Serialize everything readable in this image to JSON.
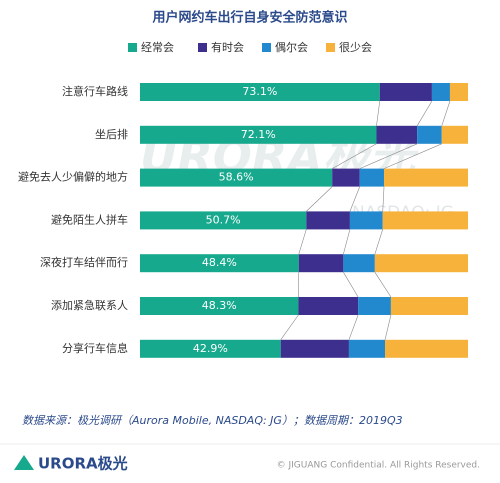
{
  "chart_data": {
    "type": "stacked-bar-horizontal",
    "title": "用户网约车出行自身安全防范意识",
    "categories": [
      "注意行车路线",
      "坐后排",
      "避免去人少偏僻的地方",
      "避免陌生人拼车",
      "深夜打车结伴而行",
      "添加紧急联系人",
      "分享行车信息"
    ],
    "series": [
      {
        "name": "经常会",
        "color": "#17a98d",
        "values": [
          73.1,
          72.1,
          58.6,
          50.7,
          48.4,
          48.3,
          42.9
        ],
        "value_labels": [
          "73.1%",
          "72.1%",
          "58.6%",
          "50.7%",
          "48.4%",
          "48.3%",
          "42.9%"
        ]
      },
      {
        "name": "有时会",
        "color": "#3d2f8e",
        "values": [
          15.9,
          12.4,
          8.4,
          13.3,
          13.6,
          18.2,
          20.8
        ]
      },
      {
        "name": "偶尔会",
        "color": "#2389cf",
        "values": [
          5.5,
          7.5,
          7.4,
          10,
          9.6,
          10,
          11
        ]
      },
      {
        "name": "很少会",
        "color": "#f7b23b",
        "values": [
          5.5,
          8,
          25.6,
          26,
          28.4,
          23.5,
          25.3
        ]
      }
    ],
    "xlim": [
      0,
      100
    ],
    "legend": "top",
    "watermark": [
      "URORA极光",
      "NASDAQ: JG"
    ],
    "source": "数据来源：极光调研（Aurora Mobile, NASDAQ: JG）；数据周期：2019Q3",
    "footer_logo": "URORA极光",
    "copyright": "© JIGUANG Confidential. All Rights Reserved."
  }
}
